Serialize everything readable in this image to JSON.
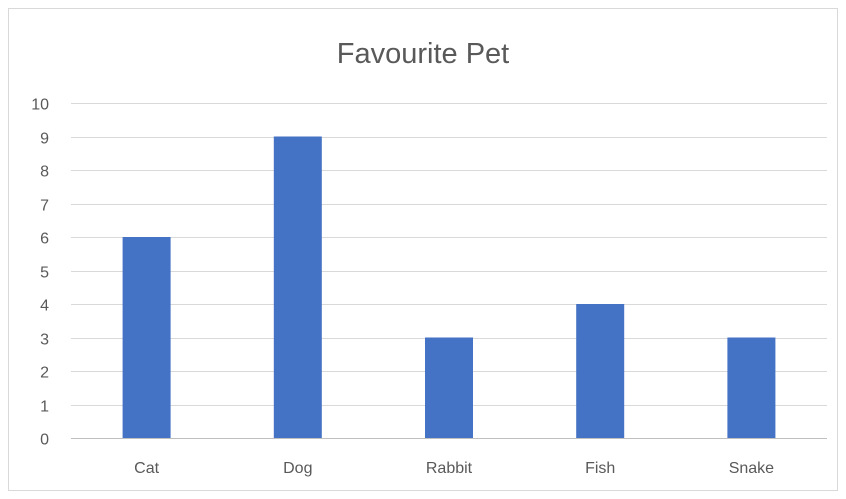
{
  "chart_data": {
    "type": "bar",
    "title": "Favourite Pet",
    "xlabel": "",
    "ylabel": "",
    "categories": [
      "Cat",
      "Dog",
      "Rabbit",
      "Fish",
      "Snake"
    ],
    "series": [
      {
        "values": [
          6,
          9,
          3,
          4,
          3
        ]
      }
    ],
    "ylim": [
      0,
      10
    ],
    "yticks": [
      0,
      1,
      2,
      3,
      4,
      5,
      6,
      7,
      8,
      9,
      10
    ],
    "grid": true,
    "legend": "none",
    "colors": {
      "bar": "#4472c4",
      "gridline": "#d9d9d9",
      "text": "#595959"
    }
  }
}
